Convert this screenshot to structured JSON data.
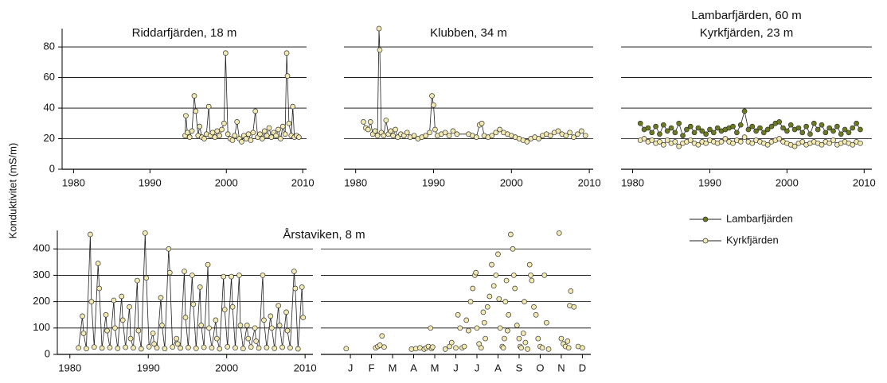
{
  "chart_data": [
    {
      "type": "line",
      "title": "Riddarfjärden, 18 m",
      "ylabel": "Konduktivitet (mS/m)",
      "color": "#f3eab2",
      "line_color": "#222222",
      "xlim": [
        1978.5,
        2010.5
      ],
      "xticks": [
        1980,
        1990,
        2000,
        2010
      ],
      "ylim": [
        0,
        92
      ],
      "yticks": [
        0,
        20,
        40,
        60,
        80
      ],
      "show_yticklabels": true,
      "grid": true,
      "x": [
        1994.6,
        1994.7,
        1994.9,
        1995.2,
        1995.5,
        1995.8,
        1996.0,
        1996.3,
        1996.5,
        1996.8,
        1997.1,
        1997.4,
        1997.7,
        1997.9,
        1998.2,
        1998.5,
        1998.8,
        1999.1,
        1999.4,
        1999.7,
        1999.9,
        2000.2,
        2000.5,
        2000.8,
        2001.1,
        2001.4,
        2001.7,
        2002.0,
        2002.3,
        2002.6,
        2002.9,
        2003.2,
        2003.5,
        2003.8,
        2004.1,
        2004.4,
        2004.7,
        2005.0,
        2005.3,
        2005.6,
        2005.9,
        2006.2,
        2006.5,
        2006.8,
        2007.1,
        2007.4,
        2007.7,
        2007.9,
        2008.0,
        2008.2,
        2008.5,
        2008.7,
        2008.9,
        2009.2,
        2009.5
      ],
      "values": [
        22,
        35,
        24,
        21,
        25,
        48,
        38,
        22,
        28,
        21,
        20,
        23,
        41,
        22,
        24,
        21,
        25,
        22,
        26,
        30,
        76,
        23,
        20,
        19,
        22,
        31,
        20,
        18,
        22,
        20,
        23,
        19,
        24,
        38,
        21,
        23,
        20,
        25,
        22,
        27,
        21,
        24,
        22,
        26,
        20,
        28,
        23,
        76,
        61,
        30,
        22,
        41,
        21,
        22,
        21
      ]
    },
    {
      "type": "line",
      "title": "Klubben, 34 m",
      "color": "#f3eab2",
      "line_color": "#222222",
      "xlim": [
        1978.5,
        2010.5
      ],
      "xticks": [
        1980,
        1990,
        2000,
        2010
      ],
      "ylim": [
        0,
        92
      ],
      "yticks": [
        0,
        20,
        40,
        60,
        80
      ],
      "show_yticklabels": false,
      "grid": true,
      "x": [
        1981.0,
        1981.3,
        1981.6,
        1981.9,
        1982.2,
        1982.5,
        1982.8,
        1983.0,
        1983.1,
        1983.3,
        1983.6,
        1983.9,
        1984.2,
        1984.5,
        1984.8,
        1985.1,
        1985.4,
        1985.8,
        1986.2,
        1986.6,
        1987.0,
        1987.5,
        1988.0,
        1988.5,
        1989.0,
        1989.5,
        1989.8,
        1990.0,
        1990.2,
        1990.5,
        1991.0,
        1991.5,
        1992.0,
        1992.5,
        1993.0,
        1994.5,
        1995.0,
        1995.5,
        1995.9,
        1996.2,
        1996.5,
        1997.0,
        1997.5,
        1998.0,
        1998.5,
        1999.0,
        1999.5,
        2000.0,
        2000.5,
        2001.0,
        2001.5,
        2002.0,
        2002.5,
        2003.0,
        2003.5,
        2004.0,
        2004.5,
        2005.0,
        2005.5,
        2006.0,
        2006.5,
        2007.0,
        2007.5,
        2008.0,
        2008.5,
        2009.0,
        2009.5
      ],
      "values": [
        31,
        27,
        26,
        31,
        23,
        25,
        22,
        92,
        78,
        24,
        22,
        32,
        23,
        25,
        22,
        26,
        21,
        23,
        22,
        24,
        21,
        22,
        20,
        21,
        22,
        24,
        48,
        42,
        26,
        22,
        23,
        24,
        22,
        25,
        23,
        23,
        22,
        21,
        29,
        30,
        22,
        21,
        22,
        24,
        26,
        24,
        23,
        22,
        21,
        20,
        19,
        18,
        20,
        21,
        20,
        22,
        23,
        22,
        24,
        25,
        23,
        22,
        24,
        21,
        23,
        25,
        22
      ]
    },
    {
      "type": "line",
      "title": "Lambarfjärden, 60 m",
      "subtitle": "Kyrkfjärden, 23 m",
      "line_color": "#222222",
      "legend": "below",
      "xlim": [
        1978.5,
        2011
      ],
      "xticks": [
        1980,
        1990,
        2000,
        2010
      ],
      "ylim": [
        0,
        92
      ],
      "yticks": [
        0,
        20,
        40,
        60,
        80
      ],
      "show_yticklabels": false,
      "grid": true,
      "x": [
        1981.0,
        1981.5,
        1982.0,
        1982.5,
        1983.0,
        1983.5,
        1984.0,
        1984.5,
        1985.0,
        1985.5,
        1986.0,
        1986.5,
        1987.0,
        1987.5,
        1988.0,
        1988.5,
        1989.0,
        1989.5,
        1990.0,
        1990.5,
        1991.0,
        1991.5,
        1992.0,
        1992.5,
        1993.0,
        1993.5,
        1994.0,
        1994.5,
        1995.0,
        1995.5,
        1996.0,
        1996.5,
        1997.0,
        1997.5,
        1998.0,
        1998.5,
        1999.0,
        1999.5,
        2000.0,
        2000.5,
        2001.0,
        2001.5,
        2002.0,
        2002.5,
        2003.0,
        2003.5,
        2004.0,
        2004.5,
        2005.0,
        2005.5,
        2006.0,
        2006.5,
        2007.0,
        2007.5,
        2008.0,
        2008.5,
        2009.0,
        2009.5
      ],
      "series": [
        {
          "name": "Lambarfjärden",
          "color": "#6b7a1f",
          "values": [
            30,
            26,
            27,
            24,
            28,
            23,
            29,
            25,
            27,
            24,
            30,
            22,
            26,
            28,
            24,
            27,
            25,
            23,
            26,
            24,
            27,
            25,
            26,
            27,
            28,
            24,
            29,
            38,
            26,
            28,
            25,
            27,
            24,
            26,
            28,
            30,
            31,
            27,
            25,
            29,
            26,
            27,
            24,
            28,
            23,
            30,
            26,
            29,
            24,
            27,
            25,
            28,
            23,
            26,
            24,
            27,
            30,
            26
          ]
        },
        {
          "name": "Kyrkfjärden",
          "color": "#f3eab2",
          "values": [
            19,
            20,
            18,
            19,
            17,
            18,
            16,
            19,
            17,
            18,
            15,
            17,
            18,
            19,
            17,
            16,
            18,
            17,
            19,
            18,
            17,
            18,
            20,
            18,
            17,
            19,
            18,
            21,
            18,
            17,
            19,
            18,
            17,
            16,
            18,
            19,
            20,
            18,
            17,
            16,
            15,
            17,
            18,
            16,
            17,
            18,
            17,
            16,
            18,
            17,
            19,
            16,
            17,
            18,
            17,
            16,
            18,
            17
          ]
        }
      ]
    },
    {
      "type": "line",
      "title": "Årstaviken, 8 m",
      "title_span": 2,
      "color": "#f3eab2",
      "line_color": "#222222",
      "xlim": [
        1978.4,
        2011
      ],
      "xticks": [
        1980,
        1990,
        2000,
        2010
      ],
      "ylim": [
        0,
        470
      ],
      "yticks": [
        0,
        100,
        200,
        300,
        400
      ],
      "show_yticklabels": true,
      "grid": true,
      "x": [
        1981.1,
        1981.6,
        1981.75,
        1982.1,
        1982.6,
        1982.75,
        1983.1,
        1983.6,
        1983.75,
        1984.1,
        1984.6,
        1984.75,
        1985.1,
        1985.6,
        1985.75,
        1986.1,
        1986.6,
        1986.75,
        1987.1,
        1987.6,
        1987.75,
        1988.1,
        1988.6,
        1988.75,
        1989.1,
        1989.6,
        1989.75,
        1990.1,
        1990.6,
        1990.75,
        1991.1,
        1991.6,
        1991.75,
        1992.1,
        1992.6,
        1992.75,
        1993.1,
        1993.6,
        1993.75,
        1994.1,
        1994.6,
        1994.75,
        1995.1,
        1995.6,
        1995.75,
        1996.1,
        1996.6,
        1996.75,
        1997.1,
        1997.6,
        1997.75,
        1998.1,
        1998.6,
        1998.75,
        1999.1,
        1999.6,
        1999.75,
        2000.1,
        2000.6,
        2000.75,
        2001.1,
        2001.6,
        2001.75,
        2002.1,
        2002.6,
        2002.75,
        2003.1,
        2003.6,
        2003.75,
        2004.1,
        2004.6,
        2004.75,
        2005.1,
        2005.6,
        2005.75,
        2006.1,
        2006.6,
        2006.75,
        2007.1,
        2007.6,
        2007.75,
        2008.1,
        2008.6,
        2008.75,
        2009.1,
        2009.6,
        2009.75
      ],
      "values": [
        25,
        145,
        80,
        22,
        455,
        200,
        28,
        345,
        250,
        24,
        150,
        90,
        26,
        205,
        100,
        23,
        220,
        130,
        27,
        180,
        60,
        25,
        280,
        90,
        21,
        460,
        290,
        29,
        80,
        40,
        25,
        215,
        110,
        22,
        400,
        310,
        28,
        60,
        40,
        24,
        315,
        140,
        26,
        300,
        190,
        23,
        255,
        110,
        27,
        340,
        100,
        25,
        130,
        60,
        21,
        295,
        170,
        29,
        295,
        180,
        25,
        300,
        110,
        22,
        110,
        60,
        28,
        100,
        50,
        24,
        300,
        130,
        26,
        145,
        100,
        23,
        185,
        110,
        27,
        160,
        90,
        25,
        315,
        250,
        21,
        255,
        140
      ]
    },
    {
      "type": "scatter",
      "color": "#f3eab2",
      "xlim": [
        -0.9,
        11.9
      ],
      "xticks": [
        {
          "value": 0.5,
          "label": "J"
        },
        {
          "value": 1.5,
          "label": "F"
        },
        {
          "value": 2.5,
          "label": "M"
        },
        {
          "value": 3.5,
          "label": "A"
        },
        {
          "value": 4.5,
          "label": "M"
        },
        {
          "value": 5.5,
          "label": "J"
        },
        {
          "value": 6.5,
          "label": "J"
        },
        {
          "value": 7.5,
          "label": "A"
        },
        {
          "value": 8.5,
          "label": "S"
        },
        {
          "value": 9.5,
          "label": "O"
        },
        {
          "value": 10.5,
          "label": "N"
        },
        {
          "value": 11.5,
          "label": "D"
        }
      ],
      "ylim": [
        0,
        470
      ],
      "yticks": [
        0,
        100,
        200,
        300,
        400
      ],
      "show_yticklabels": false,
      "grid": true,
      "x": [
        0.3,
        1.7,
        1.8,
        1.9,
        2.0,
        2.1,
        3.4,
        3.6,
        3.8,
        4.0,
        4.1,
        4.2,
        4.3,
        4.35,
        4.4,
        5.0,
        5.2,
        5.3,
        5.5,
        5.6,
        5.7,
        5.8,
        5.9,
        6.0,
        6.1,
        6.2,
        6.3,
        6.4,
        6.45,
        6.5,
        6.6,
        6.7,
        6.8,
        6.85,
        6.9,
        7.0,
        7.1,
        7.2,
        7.3,
        7.4,
        7.5,
        7.55,
        7.6,
        7.7,
        7.75,
        7.8,
        7.85,
        7.9,
        7.95,
        8.0,
        8.1,
        8.2,
        8.25,
        8.3,
        8.4,
        8.5,
        8.55,
        8.6,
        8.7,
        8.75,
        8.8,
        8.9,
        9.0,
        9.05,
        9.1,
        9.2,
        9.3,
        9.4,
        9.5,
        9.6,
        9.7,
        9.8,
        9.9,
        10.4,
        10.5,
        10.6,
        10.7,
        10.8,
        10.85,
        10.9,
        10.95,
        11.1,
        11.3,
        11.5
      ],
      "values": [
        22,
        25,
        30,
        35,
        70,
        28,
        20,
        22,
        25,
        20,
        25,
        30,
        100,
        22,
        28,
        20,
        30,
        45,
        25,
        150,
        100,
        25,
        30,
        130,
        90,
        200,
        250,
        300,
        310,
        100,
        40,
        25,
        160,
        120,
        60,
        180,
        220,
        340,
        260,
        300,
        380,
        210,
        100,
        30,
        25,
        60,
        200,
        280,
        90,
        150,
        455,
        400,
        300,
        250,
        110,
        60,
        30,
        25,
        80,
        200,
        45,
        20,
        340,
        300,
        280,
        180,
        150,
        60,
        30,
        25,
        300,
        120,
        20,
        460,
        60,
        40,
        30,
        50,
        25,
        185,
        240,
        180,
        30,
        25
      ]
    }
  ]
}
